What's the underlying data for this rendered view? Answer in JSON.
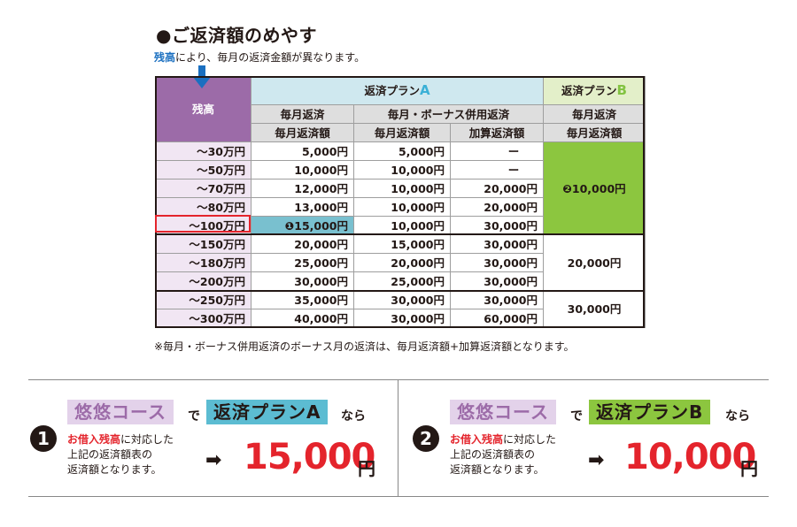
{
  "title": "●ご返済額のめやす",
  "subtitle": {
    "highlight": "残高",
    "rest": "により、毎月の返済金額が異なります。"
  },
  "table": {
    "zandaka": "残高",
    "planA_prefix": "返済プラン",
    "planA_letter": "A",
    "planB_prefix": "返済プラン",
    "planB_letter": "B",
    "a_monthly": "毎月返済",
    "a_bonus": "毎月・ボーナス併用返済",
    "b_monthly": "毎月返済",
    "col_monthly_amount": "毎月返済額",
    "col_bonus_monthly_amount": "毎月返済額",
    "col_additional": "加算返済額",
    "col_b_amount": "毎月返済額",
    "rows": [
      {
        "label": "～30万円",
        "a_m": "5,000円",
        "b_m": "5,000円",
        "b_add": "ー"
      },
      {
        "label": "～50万円",
        "a_m": "10,000円",
        "b_m": "10,000円",
        "b_add": "ー"
      },
      {
        "label": "～70万円",
        "a_m": "12,000円",
        "b_m": "10,000円",
        "b_add": "20,000円"
      },
      {
        "label": "～80万円",
        "a_m": "13,000円",
        "b_m": "10,000円",
        "b_add": "20,000円"
      },
      {
        "label": "～100万円",
        "a_m": "❶15,000円",
        "b_m": "10,000円",
        "b_add": "30,000円"
      },
      {
        "label": "～150万円",
        "a_m": "20,000円",
        "b_m": "15,000円",
        "b_add": "30,000円"
      },
      {
        "label": "～180万円",
        "a_m": "25,000円",
        "b_m": "20,000円",
        "b_add": "30,000円"
      },
      {
        "label": "～200万円",
        "a_m": "30,000円",
        "b_m": "25,000円",
        "b_add": "30,000円"
      },
      {
        "label": "～250万円",
        "a_m": "35,000円",
        "b_m": "30,000円",
        "b_add": "30,000円"
      },
      {
        "label": "～300万円",
        "a_m": "40,000円",
        "b_m": "30,000円",
        "b_add": "60,000円"
      }
    ],
    "b_groups": [
      "❷10,000円",
      "20,000円",
      "30,000円"
    ]
  },
  "note": "※毎月・ボーナス併用返済のボーナス月の返済は、毎月返済額+加算返済額となります。",
  "cases": [
    {
      "num": "1",
      "course": "悠悠コース",
      "de": "で",
      "plan": "返済プランA",
      "nara": "なら",
      "desc_red": "お借入残高",
      "desc_line1": "に対応した",
      "desc_line2": "上記の返済額表の",
      "desc_line3": "返済額となります。",
      "arrow": "➡",
      "amount": "15,000",
      "yen": "円"
    },
    {
      "num": "2",
      "course": "悠悠コース",
      "de": "で",
      "plan": "返済プランB",
      "nara": "なら",
      "desc_red": "お借入残高",
      "desc_line1": "に対応した",
      "desc_line2": "上記の返済額表の",
      "desc_line3": "返済額となります。",
      "arrow": "➡",
      "amount": "10,000",
      "yen": "円"
    }
  ],
  "colors": {
    "purple": "#9c6ba8",
    "green": "#8cc63f",
    "blue": "#5cbcd2",
    "red": "#e4242c"
  }
}
